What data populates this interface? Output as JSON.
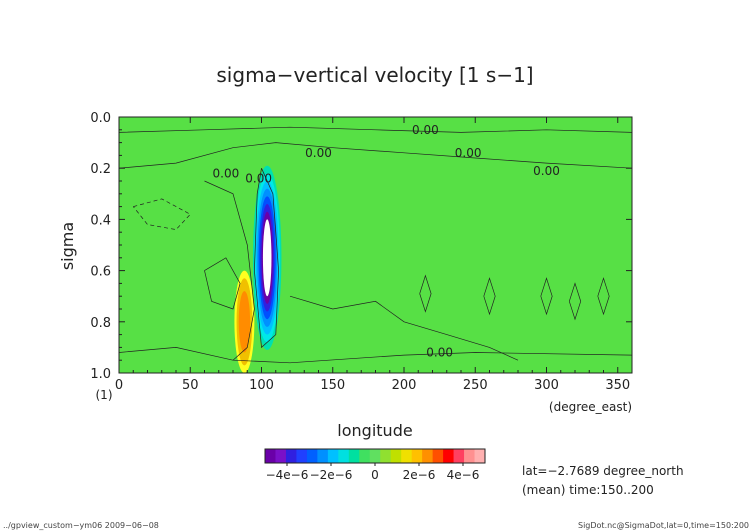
{
  "chart_data": {
    "type": "contour",
    "title": "sigma−vertical velocity [1 s−1]",
    "xlabel": "longitude",
    "ylabel": "sigma",
    "x_units": "(degree_east)",
    "y_units": "(1)",
    "xlim": [
      0,
      360
    ],
    "ylim": [
      1.0,
      0.0
    ],
    "x_ticks": [
      0,
      50,
      100,
      150,
      200,
      250,
      300,
      350
    ],
    "y_ticks": [
      "0.0",
      "0.2",
      "0.4",
      "0.6",
      "0.8",
      "1.0"
    ],
    "y_tick_values": [
      0.0,
      0.2,
      0.4,
      0.6,
      0.8,
      1.0
    ],
    "contour_labels": [
      {
        "text": "0.00",
        "x": 215,
        "y": 0.05
      },
      {
        "text": "0.00",
        "x": 140,
        "y": 0.14
      },
      {
        "text": "0.00",
        "x": 245,
        "y": 0.14
      },
      {
        "text": "0.00",
        "x": 300,
        "y": 0.21
      },
      {
        "text": "0.00",
        "x": 75,
        "y": 0.22
      },
      {
        "text": "0.00",
        "x": 98,
        "y": 0.24
      },
      {
        "text": "0.00",
        "x": 225,
        "y": 0.92
      }
    ],
    "features": {
      "max_negative_longitude": 104,
      "max_negative_sigma": 0.55,
      "max_positive_longitude": 88,
      "max_positive_sigma": 0.8
    },
    "colorbar": {
      "levels": [
        -5e-06,
        -4.5e-06,
        -4e-06,
        -3.5e-06,
        -3e-06,
        -2.5e-06,
        -2e-06,
        -1.5e-06,
        -1e-06,
        -5e-07,
        0,
        5e-07,
        1e-06,
        1.5e-06,
        2e-06,
        2.5e-06,
        3e-06,
        3.5e-06,
        4e-06,
        4.5e-06,
        5e-06
      ],
      "colors": [
        "#6a00a8",
        "#7a10c8",
        "#3020e0",
        "#2040ff",
        "#0060ff",
        "#0090ff",
        "#00c0ff",
        "#00e0e0",
        "#00e0a0",
        "#40e060",
        "#60e060",
        "#90e030",
        "#c0e000",
        "#f0e000",
        "#ffc000",
        "#ff9000",
        "#ff5000",
        "#ff0000",
        "#ff4060",
        "#ff9090",
        "#ffb0b0"
      ],
      "tick_labels": [
        "−4e−6",
        "−2e−6",
        "0",
        "2e−6",
        "4e−6"
      ],
      "tick_values": [
        -4e-06,
        -2e-06,
        0,
        2e-06,
        4e-06
      ]
    },
    "annotations": [
      "lat=−2.7689 degree_north",
      "(mean) time:150..200"
    ]
  },
  "footer": {
    "left": "../gpview_custom−ym06  2009−06−08",
    "right": "SigDot.nc@SigmaDot,lat=0,time=150:200"
  }
}
